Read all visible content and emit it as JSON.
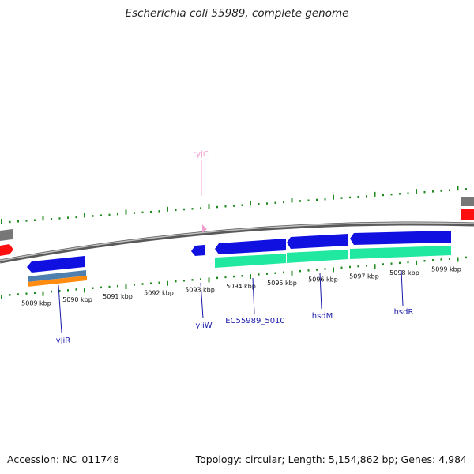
{
  "title": "Escherichia coli 55989, complete genome",
  "footer": {
    "accession": "Accession: NC_011748",
    "summary": "Topology: circular; Length: 5,154,862 bp; Genes: 4,984"
  },
  "colors": {
    "backbone": "#8a8a8a",
    "tick": "#1f8a1f",
    "gene_blue": "#1010e0",
    "gene_green": "#20e8a0",
    "gene_steel": "#4f7fae",
    "gene_orange": "#ff8c10",
    "gene_red": "#ff1010",
    "gene_gray": "#777777",
    "rna_pink": "#f0a0d0",
    "label_blue": "#1a1aa8"
  },
  "scale_labels": [
    "5089 kbp",
    "5090 kbp",
    "5091 kbp",
    "5092 kbp",
    "5093 kbp",
    "5094 kbp",
    "5095 kbp",
    "5096 kbp",
    "5097 kbp",
    "5098 kbp",
    "5099 kbp"
  ],
  "gene_labels": {
    "ryjC": "ryjC",
    "yjiR": "yjiR",
    "yjiW": "yjiW",
    "ec5010": "EC55989_5010",
    "hsdM": "hsdM",
    "hsdR": "hsdR"
  }
}
